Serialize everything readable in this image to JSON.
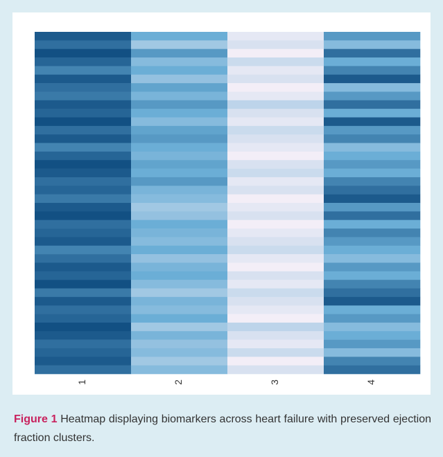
{
  "chart_data": {
    "type": "heatmap",
    "categories": [
      "1",
      "2",
      "3",
      "4"
    ],
    "colors": [
      "#f3eef7",
      "#6baed6",
      "#08457a"
    ],
    "values": [
      [
        0.9,
        0.8,
        0.95,
        0.85,
        0.7,
        0.9,
        0.8,
        0.75,
        0.9,
        0.85,
        0.95,
        0.8,
        0.9,
        0.7,
        0.85,
        0.95,
        0.9,
        0.8,
        0.85,
        0.75,
        0.9,
        0.95,
        0.8,
        0.85,
        0.9,
        0.7,
        0.8,
        0.9,
        0.85,
        0.95,
        0.75,
        0.9,
        0.8,
        0.85,
        0.95,
        0.9,
        0.8,
        0.85,
        0.9,
        0.8
      ],
      [
        0.5,
        0.3,
        0.6,
        0.4,
        0.5,
        0.35,
        0.55,
        0.45,
        0.6,
        0.5,
        0.4,
        0.55,
        0.6,
        0.5,
        0.45,
        0.55,
        0.5,
        0.6,
        0.45,
        0.4,
        0.3,
        0.35,
        0.5,
        0.45,
        0.4,
        0.5,
        0.35,
        0.45,
        0.5,
        0.4,
        0.3,
        0.45,
        0.4,
        0.5,
        0.3,
        0.45,
        0.35,
        0.4,
        0.3,
        0.4
      ],
      [
        0.05,
        0.1,
        0.0,
        0.15,
        0.05,
        0.1,
        0.0,
        0.05,
        0.2,
        0.1,
        0.05,
        0.15,
        0.1,
        0.05,
        0.0,
        0.1,
        0.15,
        0.05,
        0.1,
        0.0,
        0.05,
        0.1,
        0.0,
        0.05,
        0.1,
        0.15,
        0.05,
        0.0,
        0.1,
        0.05,
        0.15,
        0.1,
        0.05,
        0.0,
        0.2,
        0.1,
        0.05,
        0.15,
        0.0,
        0.1
      ],
      [
        0.6,
        0.4,
        0.8,
        0.5,
        0.7,
        0.9,
        0.4,
        0.6,
        0.8,
        0.5,
        0.9,
        0.6,
        0.7,
        0.4,
        0.5,
        0.6,
        0.5,
        0.7,
        0.8,
        0.9,
        0.6,
        0.8,
        0.5,
        0.7,
        0.6,
        0.5,
        0.4,
        0.6,
        0.5,
        0.7,
        0.8,
        0.9,
        0.5,
        0.6,
        0.4,
        0.5,
        0.6,
        0.4,
        0.7,
        0.8
      ]
    ]
  },
  "caption": {
    "label": "Figure 1",
    "text": "Heatmap displaying biomarkers across heart failure with preserved ejection fraction clusters."
  }
}
